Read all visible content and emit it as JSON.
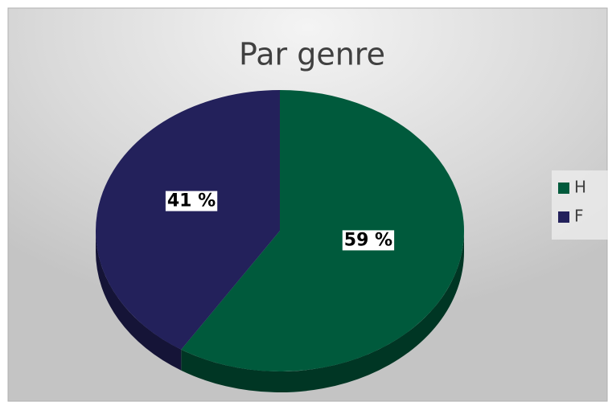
{
  "chart_data": {
    "type": "pie",
    "title": "Par genre",
    "categories": [
      "H",
      "F"
    ],
    "values": [
      59,
      41
    ],
    "value_labels": [
      "59 %",
      "41 %"
    ],
    "colors": [
      "#005a3c",
      "#23215b"
    ],
    "legend": "right"
  }
}
